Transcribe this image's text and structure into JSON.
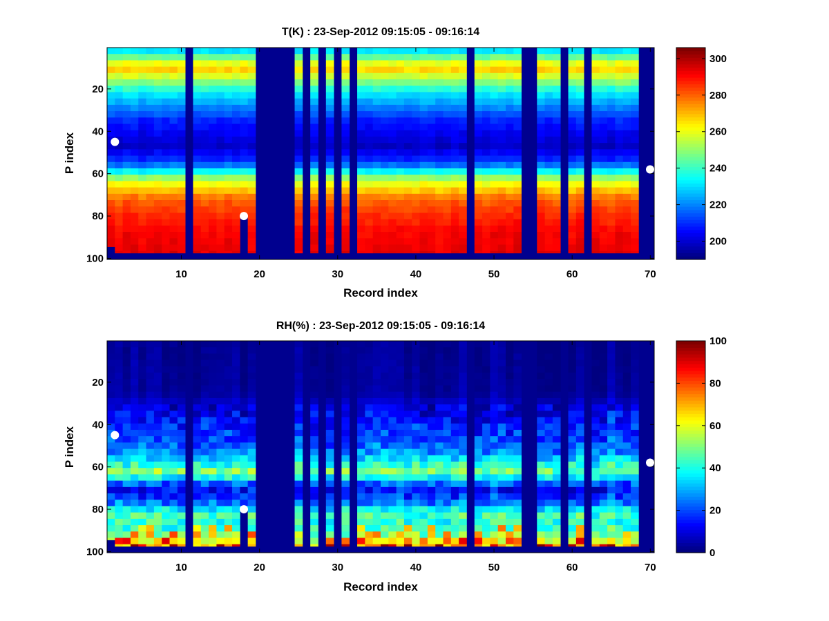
{
  "chart_data": [
    {
      "type": "heatmap",
      "title": "T(K) : 23-Sep-2012 09:15:05 - 09:16:14",
      "xlabel": "Record index",
      "ylabel": "P index",
      "xlim": [
        1,
        70
      ],
      "ylim": [
        100,
        1
      ],
      "y_reversed": true,
      "xticks": [
        10,
        20,
        30,
        40,
        50,
        60,
        70
      ],
      "yticks": [
        20,
        40,
        60,
        80,
        100
      ],
      "colormap": "jet",
      "color_range": [
        190,
        306
      ],
      "colorbar_ticks": [
        200,
        220,
        240,
        260,
        280,
        300
      ],
      "fill_value": 190,
      "missing_records": [
        11,
        20,
        21,
        22,
        23,
        24,
        26,
        28,
        30,
        32,
        47,
        54,
        55,
        59,
        62,
        69,
        70
      ],
      "record_last_level": {
        "1": 94,
        "18": 80,
        "19": 97,
        "others": 97
      },
      "profile_levels": [
        1,
        10,
        22,
        35,
        47,
        55,
        63,
        72,
        80,
        88,
        97
      ],
      "profile_values": [
        226,
        270,
        232,
        208,
        198,
        212,
        256,
        280,
        287,
        292,
        294
      ],
      "markers": [
        {
          "record": 1.5,
          "p_index": 45
        },
        {
          "record": 18,
          "p_index": 80
        },
        {
          "record": 70,
          "p_index": 58
        }
      ],
      "grid": false
    },
    {
      "type": "heatmap",
      "title": "RH(%) : 23-Sep-2012 09:15:05 - 09:16:14",
      "xlabel": "Record index",
      "ylabel": "P index",
      "xlim": [
        1,
        70
      ],
      "ylim": [
        100,
        1
      ],
      "y_reversed": true,
      "xticks": [
        10,
        20,
        30,
        40,
        50,
        60,
        70
      ],
      "yticks": [
        20,
        40,
        60,
        80,
        100
      ],
      "colormap": "jet",
      "color_range": [
        0,
        100
      ],
      "colorbar_ticks": [
        0,
        20,
        40,
        60,
        80,
        100
      ],
      "fill_value": 0,
      "missing_records": [
        11,
        20,
        21,
        22,
        23,
        24,
        26,
        28,
        30,
        32,
        47,
        54,
        55,
        59,
        62,
        69,
        70
      ],
      "record_last_level": {
        "1": 94,
        "18": 80,
        "19": 97,
        "others": 97
      },
      "profile_levels": [
        1,
        25,
        35,
        45,
        52,
        58,
        62,
        65,
        70,
        76,
        82,
        88,
        94,
        97
      ],
      "profile_values": [
        2,
        3,
        12,
        18,
        25,
        38,
        50,
        38,
        12,
        20,
        45,
        40,
        55,
        70
      ],
      "markers": [
        {
          "record": 1.5,
          "p_index": 45
        },
        {
          "record": 18,
          "p_index": 80
        },
        {
          "record": 70,
          "p_index": 58
        }
      ],
      "grid": false
    }
  ]
}
